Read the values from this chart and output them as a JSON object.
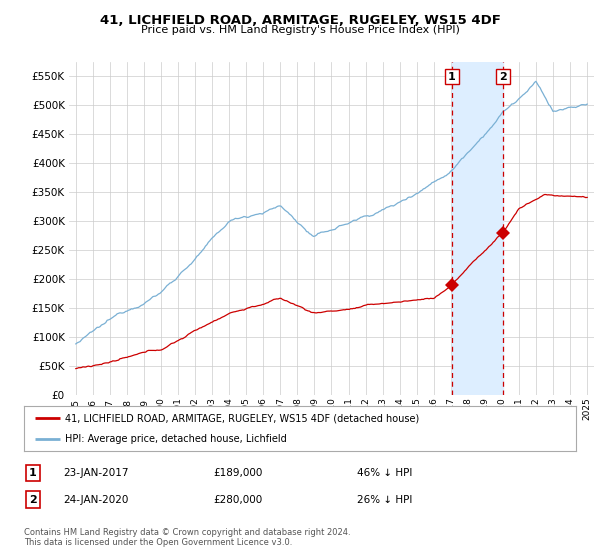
{
  "title": "41, LICHFIELD ROAD, ARMITAGE, RUGELEY, WS15 4DF",
  "subtitle": "Price paid vs. HM Land Registry's House Price Index (HPI)",
  "legend_house": "41, LICHFIELD ROAD, ARMITAGE, RUGELEY, WS15 4DF (detached house)",
  "legend_hpi": "HPI: Average price, detached house, Lichfield",
  "transaction1_label": "1",
  "transaction1_date": "23-JAN-2017",
  "transaction1_price": "£189,000",
  "transaction1_hpi": "46% ↓ HPI",
  "transaction2_label": "2",
  "transaction2_date": "24-JAN-2020",
  "transaction2_price": "£280,000",
  "transaction2_hpi": "26% ↓ HPI",
  "footer": "Contains HM Land Registry data © Crown copyright and database right 2024.\nThis data is licensed under the Open Government Licence v3.0.",
  "house_color": "#cc0000",
  "hpi_color": "#7ab0d4",
  "shade_color": "#ddeeff",
  "vline_color": "#cc0000",
  "background_color": "#ffffff",
  "grid_color": "#cccccc",
  "ylim": [
    0,
    575000
  ],
  "yticks": [
    0,
    50000,
    100000,
    150000,
    200000,
    250000,
    300000,
    350000,
    400000,
    450000,
    500000,
    550000
  ],
  "xlim_start": 1994.6,
  "xlim_end": 2025.4,
  "transaction1_x": 2017.07,
  "transaction1_y": 189000,
  "transaction2_x": 2020.07,
  "transaction2_y": 280000
}
